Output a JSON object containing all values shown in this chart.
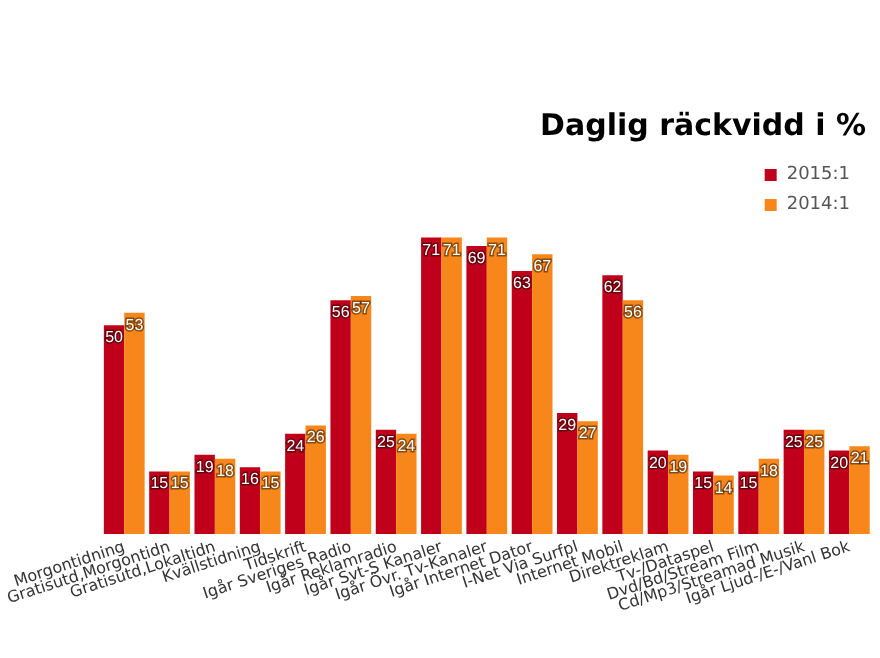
{
  "chart_data": {
    "type": "bar",
    "title": "Daglig räckvidd i %",
    "categories": [
      "Morgontidning",
      "Gratisutd,Morgontidn",
      "Gratisutd,Lokaltidn",
      "Kvällstidning",
      "Tidskrift",
      "Igår Sveriges Radio",
      "Igår Reklamradio",
      "Igår Svt-S Kanaler",
      "Igår Övr. Tv-Kanaler",
      "Igår Internet Dator",
      "I-Net Via Surfpl",
      "Internet Mobil",
      "Direktreklam",
      "Tv-/Dataspel",
      "Dvd/Bd/Stream Film",
      "Cd/Mp3/Streamad Musik",
      "Igår Ljud-/E-/Vanl Bok"
    ],
    "series": [
      {
        "name": "2015:1",
        "color": "#c0001a",
        "values": [
          50,
          15,
          19,
          16,
          24,
          56,
          25,
          71,
          69,
          63,
          29,
          62,
          20,
          15,
          15,
          25,
          20
        ]
      },
      {
        "name": "2014:1",
        "color": "#f7861b",
        "values": [
          53,
          15,
          18,
          15,
          26,
          57,
          24,
          71,
          71,
          67,
          27,
          56,
          19,
          14,
          18,
          25,
          21
        ]
      }
    ],
    "data_labels": true,
    "legend": "top right"
  }
}
